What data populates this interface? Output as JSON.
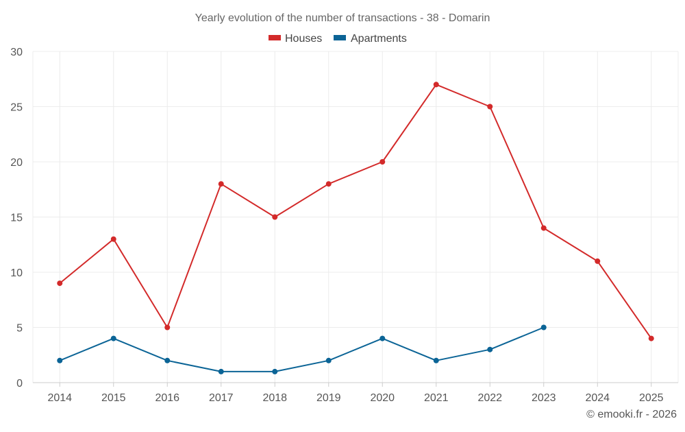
{
  "chart_data": {
    "type": "line",
    "title": "Yearly evolution of the number of transactions - 38 - Domarin",
    "categories": [
      "2014",
      "2015",
      "2016",
      "2017",
      "2018",
      "2019",
      "2020",
      "2021",
      "2022",
      "2023",
      "2024",
      "2025"
    ],
    "ylim": [
      0,
      30
    ],
    "yticks": [
      0,
      5,
      10,
      15,
      20,
      25,
      30
    ],
    "grid": true,
    "legend_position": "top-center",
    "series": [
      {
        "name": "Houses",
        "color": "#d32a2a",
        "values": [
          9,
          13,
          5,
          18,
          15,
          18,
          20,
          27,
          25,
          14,
          11,
          4
        ]
      },
      {
        "name": "Apartments",
        "color": "#0b6496",
        "values": [
          2,
          4,
          2,
          1,
          1,
          2,
          4,
          2,
          3,
          5,
          null,
          null
        ]
      }
    ],
    "credit": "© emooki.fr - 2026"
  }
}
